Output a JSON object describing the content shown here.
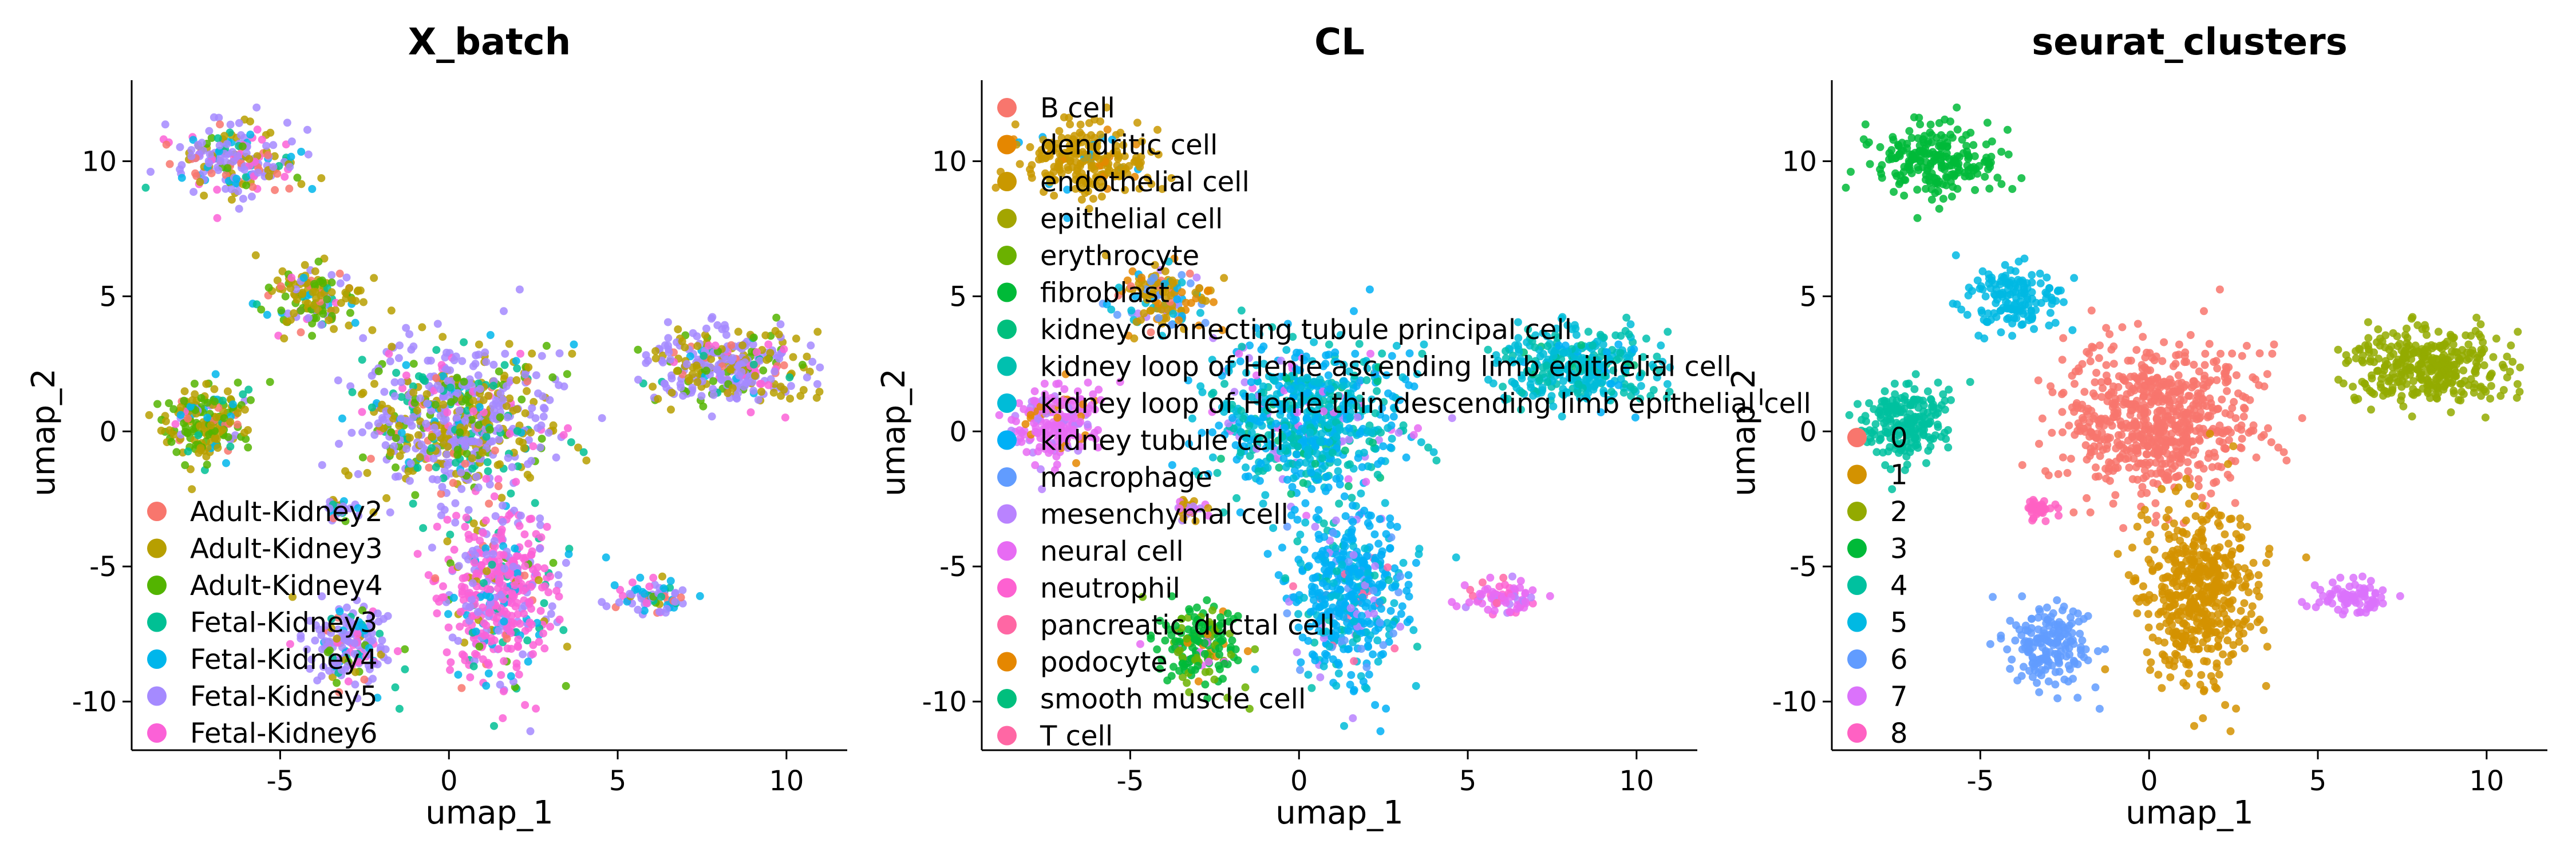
{
  "chart_data": [
    {
      "type": "scatter",
      "title": "X_batch",
      "xlabel": "umap_1",
      "ylabel": "umap_2",
      "xlim": [
        -9.4,
        11.8
      ],
      "ylim": [
        -11.8,
        13.0
      ],
      "x_ticks": [
        -5,
        0,
        5,
        10
      ],
      "y_ticks": [
        10,
        5,
        0,
        -5,
        -10
      ],
      "x_tick_labels": [
        "-5",
        "0",
        "5",
        "10"
      ],
      "y_tick_labels": [
        "10",
        "5",
        "0",
        "-5",
        "-10"
      ],
      "grid": false,
      "legend_position": "inside-bottom-left",
      "legend": [
        {
          "label": "Adult-Kidney2",
          "color": "#F8766D"
        },
        {
          "label": "Adult-Kidney3",
          "color": "#B79F00"
        },
        {
          "label": "Adult-Kidney4",
          "color": "#53B400"
        },
        {
          "label": "Fetal-Kidney3",
          "color": "#00C094"
        },
        {
          "label": "Fetal-Kidney4",
          "color": "#00B6EB"
        },
        {
          "label": "Fetal-Kidney5",
          "color": "#A58AFF"
        },
        {
          "label": "Fetal-Kidney6",
          "color": "#FB61D7"
        }
      ],
      "clusters": [
        {
          "name": "3",
          "cx": -6.3,
          "cy": 10.0,
          "sx": 1.2,
          "sy": 0.8,
          "n": 220,
          "mix": [
            0.12,
            0.18,
            0.05,
            0.05,
            0.1,
            0.4,
            0.1
          ]
        },
        {
          "name": "5",
          "cx": -4.0,
          "cy": 5.0,
          "sx": 0.9,
          "sy": 0.8,
          "n": 150,
          "mix": [
            0.05,
            0.4,
            0.3,
            0.05,
            0.05,
            0.1,
            0.05
          ]
        },
        {
          "name": "4",
          "cx": -7.2,
          "cy": 0.3,
          "sx": 0.9,
          "sy": 1.0,
          "n": 200,
          "mix": [
            0.05,
            0.35,
            0.45,
            0.05,
            0.05,
            0.03,
            0.02
          ]
        },
        {
          "name": "0",
          "cx": 0.3,
          "cy": 0.4,
          "sx": 1.8,
          "sy": 1.9,
          "n": 700,
          "mix": [
            0.03,
            0.25,
            0.12,
            0.1,
            0.05,
            0.4,
            0.05
          ]
        },
        {
          "name": "1",
          "cx": 1.5,
          "cy": -6.0,
          "sx": 1.1,
          "sy": 2.2,
          "n": 500,
          "mix": [
            0.02,
            0.03,
            0.03,
            0.05,
            0.07,
            0.2,
            0.6
          ]
        },
        {
          "name": "2",
          "cx": 8.2,
          "cy": 2.4,
          "sx": 1.6,
          "sy": 0.9,
          "n": 350,
          "mix": [
            0.05,
            0.3,
            0.08,
            0.05,
            0.02,
            0.45,
            0.05
          ]
        },
        {
          "name": "6",
          "cx": -3.0,
          "cy": -8.0,
          "sx": 0.8,
          "sy": 1.0,
          "n": 180,
          "mix": [
            0.02,
            0.03,
            0.05,
            0.05,
            0.1,
            0.6,
            0.15
          ]
        },
        {
          "name": "7",
          "cx": 6.0,
          "cy": -6.2,
          "sx": 0.7,
          "sy": 0.4,
          "n": 80,
          "mix": [
            0.05,
            0.05,
            0.05,
            0.1,
            0.2,
            0.4,
            0.15
          ]
        },
        {
          "name": "8",
          "cx": -3.2,
          "cy": -2.9,
          "sx": 0.3,
          "sy": 0.25,
          "n": 40,
          "mix": [
            0.05,
            0.05,
            0.05,
            0.1,
            0.1,
            0.55,
            0.1
          ]
        }
      ]
    },
    {
      "type": "scatter",
      "title": "CL",
      "xlabel": "umap_1",
      "ylabel": "umap_2",
      "xlim": [
        -9.4,
        11.8
      ],
      "ylim": [
        -11.8,
        13.0
      ],
      "x_ticks": [
        -5,
        0,
        5,
        10
      ],
      "y_ticks": [
        10,
        5,
        0,
        -5,
        -10
      ],
      "x_tick_labels": [
        "-5",
        "0",
        "5",
        "10"
      ],
      "y_tick_labels": [
        "10",
        "5",
        "0",
        "-5",
        "-10"
      ],
      "grid": false,
      "legend_position": "inside-left",
      "legend": [
        {
          "label": "B cell",
          "color": "#F8766D"
        },
        {
          "label": "dendritic cell",
          "color": "#E58700"
        },
        {
          "label": "endothelial cell",
          "color": "#C99800"
        },
        {
          "label": "epithelial cell",
          "color": "#A3A500"
        },
        {
          "label": "erythrocyte",
          "color": "#6BB100"
        },
        {
          "label": "fibroblast",
          "color": "#00BA38"
        },
        {
          "label": "kidney connecting tubule principal cell",
          "color": "#00BF7D"
        },
        {
          "label": "kidney loop of Henle ascending limb epithelial cell",
          "color": "#00C0AF"
        },
        {
          "label": "kidney loop of Henle thin descending limb epithelial cell",
          "color": "#00BCD8"
        },
        {
          "label": "kidney tubule cell",
          "color": "#00B0F6"
        },
        {
          "label": "macrophage",
          "color": "#619CFF"
        },
        {
          "label": "mesenchymal cell",
          "color": "#B983FF"
        },
        {
          "label": "neural cell",
          "color": "#E76BF3"
        },
        {
          "label": "neutrophil",
          "color": "#FD61D1"
        },
        {
          "label": "pancreatic ductal cell",
          "color": "#FF67A4"
        },
        {
          "label": "podocyte",
          "color": "#E58700"
        },
        {
          "label": "smooth muscle cell",
          "color": "#00BF7D"
        },
        {
          "label": "T cell",
          "color": "#FF67A4"
        }
      ],
      "clusters": [
        {
          "name": "3",
          "cx": -6.3,
          "cy": 10.0,
          "sx": 1.2,
          "sy": 0.8,
          "n": 220,
          "mix": [
            0,
            0,
            0.9,
            0,
            0,
            0,
            0,
            0,
            0,
            0.05,
            0,
            0,
            0,
            0,
            0,
            0.05,
            0,
            0
          ]
        },
        {
          "name": "5",
          "cx": -4.0,
          "cy": 5.0,
          "sx": 0.9,
          "sy": 0.8,
          "n": 150,
          "mix": [
            0.05,
            0.1,
            0.4,
            0,
            0,
            0,
            0,
            0,
            0.15,
            0.1,
            0.1,
            0.05,
            0,
            0,
            0,
            0.05,
            0,
            0
          ]
        },
        {
          "name": "4",
          "cx": -7.2,
          "cy": 0.3,
          "sx": 0.9,
          "sy": 1.0,
          "n": 200,
          "mix": [
            0,
            0,
            0,
            0,
            0,
            0,
            0,
            0,
            0,
            0,
            0,
            0.15,
            0.75,
            0,
            0,
            0.1,
            0,
            0
          ]
        },
        {
          "name": "0",
          "cx": 0.3,
          "cy": 0.4,
          "sx": 1.8,
          "sy": 1.9,
          "n": 700,
          "mix": [
            0,
            0,
            0,
            0,
            0,
            0,
            0.05,
            0.2,
            0.35,
            0.3,
            0,
            0.05,
            0.05,
            0,
            0,
            0,
            0,
            0
          ]
        },
        {
          "name": "1",
          "cx": 1.5,
          "cy": -6.0,
          "sx": 1.1,
          "sy": 2.2,
          "n": 500,
          "mix": [
            0,
            0,
            0,
            0,
            0,
            0,
            0,
            0.05,
            0.15,
            0.65,
            0.05,
            0.05,
            0,
            0,
            0.05,
            0,
            0,
            0
          ]
        },
        {
          "name": "2",
          "cx": 8.2,
          "cy": 2.4,
          "sx": 1.6,
          "sy": 0.9,
          "n": 350,
          "mix": [
            0,
            0,
            0,
            0,
            0,
            0,
            0.05,
            0.35,
            0.55,
            0.05,
            0,
            0,
            0,
            0,
            0,
            0,
            0,
            0
          ]
        },
        {
          "name": "6",
          "cx": -3.0,
          "cy": -8.0,
          "sx": 0.8,
          "sy": 1.0,
          "n": 180,
          "mix": [
            0,
            0,
            0,
            0,
            0.2,
            0.65,
            0,
            0,
            0,
            0,
            0,
            0,
            0.1,
            0,
            0,
            0.05,
            0,
            0
          ]
        },
        {
          "name": "7",
          "cx": 6.0,
          "cy": -6.2,
          "sx": 0.7,
          "sy": 0.4,
          "n": 80,
          "mix": [
            0,
            0,
            0,
            0,
            0,
            0,
            0,
            0,
            0,
            0,
            0,
            0.1,
            0.6,
            0.2,
            0.1,
            0,
            0,
            0
          ]
        },
        {
          "name": "8",
          "cx": -3.2,
          "cy": -2.9,
          "sx": 0.3,
          "sy": 0.25,
          "n": 40,
          "mix": [
            0,
            0,
            0.4,
            0,
            0,
            0,
            0,
            0,
            0,
            0,
            0,
            0.4,
            0.2,
            0,
            0,
            0,
            0,
            0
          ]
        }
      ]
    },
    {
      "type": "scatter",
      "title": "seurat_clusters",
      "xlabel": "umap_1",
      "ylabel": "umap_2",
      "xlim": [
        -9.4,
        11.8
      ],
      "ylim": [
        -11.8,
        13.0
      ],
      "x_ticks": [
        -5,
        0,
        5,
        10
      ],
      "y_ticks": [
        10,
        5,
        0,
        -5,
        -10
      ],
      "x_tick_labels": [
        "-5",
        "0",
        "5",
        "10"
      ],
      "y_tick_labels": [
        "10",
        "5",
        "0",
        "-5",
        "-10"
      ],
      "grid": false,
      "legend_position": "inside-left",
      "legend": [
        {
          "label": "0",
          "color": "#F8766D"
        },
        {
          "label": "1",
          "color": "#D39200"
        },
        {
          "label": "2",
          "color": "#93AA00"
        },
        {
          "label": "3",
          "color": "#00BA38"
        },
        {
          "label": "4",
          "color": "#00C19F"
        },
        {
          "label": "5",
          "color": "#00B9E3"
        },
        {
          "label": "6",
          "color": "#619CFF"
        },
        {
          "label": "7",
          "color": "#DB72FB"
        },
        {
          "label": "8",
          "color": "#FF61C3"
        }
      ],
      "clusters": [
        {
          "name": "3",
          "cx": -6.3,
          "cy": 10.0,
          "sx": 1.2,
          "sy": 0.8,
          "n": 220,
          "mix": [
            0,
            0,
            0,
            1,
            0,
            0,
            0,
            0,
            0
          ]
        },
        {
          "name": "5",
          "cx": -4.0,
          "cy": 5.0,
          "sx": 0.9,
          "sy": 0.8,
          "n": 150,
          "mix": [
            0,
            0,
            0,
            0,
            0,
            1,
            0,
            0,
            0
          ]
        },
        {
          "name": "4",
          "cx": -7.2,
          "cy": 0.3,
          "sx": 0.9,
          "sy": 1.0,
          "n": 200,
          "mix": [
            0,
            0,
            0,
            0,
            1,
            0,
            0,
            0,
            0
          ]
        },
        {
          "name": "0",
          "cx": 0.3,
          "cy": 0.4,
          "sx": 1.8,
          "sy": 1.9,
          "n": 700,
          "mix": [
            1,
            0,
            0,
            0,
            0,
            0,
            0,
            0,
            0
          ]
        },
        {
          "name": "1",
          "cx": 1.5,
          "cy": -6.0,
          "sx": 1.1,
          "sy": 2.2,
          "n": 500,
          "mix": [
            0,
            1,
            0,
            0,
            0,
            0,
            0,
            0,
            0
          ]
        },
        {
          "name": "2",
          "cx": 8.2,
          "cy": 2.4,
          "sx": 1.6,
          "sy": 0.9,
          "n": 350,
          "mix": [
            0,
            0,
            1,
            0,
            0,
            0,
            0,
            0,
            0
          ]
        },
        {
          "name": "6",
          "cx": -3.0,
          "cy": -8.0,
          "sx": 0.8,
          "sy": 1.0,
          "n": 180,
          "mix": [
            0,
            0,
            0,
            0,
            0,
            0,
            1,
            0,
            0
          ]
        },
        {
          "name": "7",
          "cx": 6.0,
          "cy": -6.2,
          "sx": 0.7,
          "sy": 0.4,
          "n": 80,
          "mix": [
            0,
            0,
            0,
            0,
            0,
            0,
            0,
            1,
            0
          ]
        },
        {
          "name": "8",
          "cx": -3.2,
          "cy": -2.9,
          "sx": 0.3,
          "sy": 0.25,
          "n": 40,
          "mix": [
            0,
            0,
            0,
            0,
            0,
            0,
            0,
            0,
            1
          ]
        }
      ]
    }
  ]
}
